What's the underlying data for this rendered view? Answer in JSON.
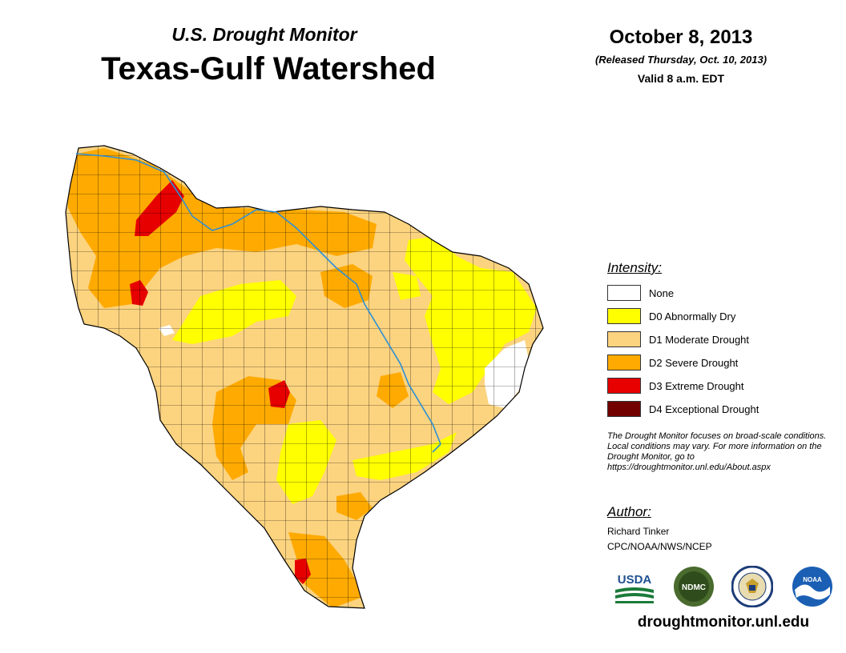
{
  "header": {
    "subtitle": "U.S. Drought Monitor",
    "title": "Texas-Gulf Watershed",
    "date": "October 8, 2013",
    "released": "(Released Thursday, Oct. 10, 2013)",
    "valid": "Valid 8 a.m. EDT"
  },
  "legend": {
    "heading": "Intensity:",
    "items": [
      {
        "label": "None",
        "color": "#ffffff"
      },
      {
        "label": "D0 Abnormally Dry",
        "color": "#ffff00"
      },
      {
        "label": "D1 Moderate Drought",
        "color": "#fcd37f"
      },
      {
        "label": "D2 Severe Drought",
        "color": "#ffaa00"
      },
      {
        "label": "D3 Extreme Drought",
        "color": "#e60000"
      },
      {
        "label": "D4 Exceptional Drought",
        "color": "#730000"
      }
    ]
  },
  "note": "The Drought Monitor focuses on broad-scale conditions. Local conditions may vary. For more information on the Drought Monitor, go to https://droughtmonitor.unl.edu/About.aspx",
  "author": {
    "heading": "Author:",
    "name": "Richard Tinker",
    "org": "CPC/NOAA/NWS/NCEP"
  },
  "logos": {
    "usda": "USDA",
    "ndmc": "NDMC",
    "noaa": "NOAA"
  },
  "footer": {
    "url": "droughtmonitor.unl.edu"
  },
  "map_colors": {
    "none": "#ffffff",
    "d0": "#ffff00",
    "d1": "#fcd37f",
    "d2": "#ffaa00",
    "d3": "#e60000",
    "river": "#2b8fd6",
    "county_line": "#000000"
  }
}
